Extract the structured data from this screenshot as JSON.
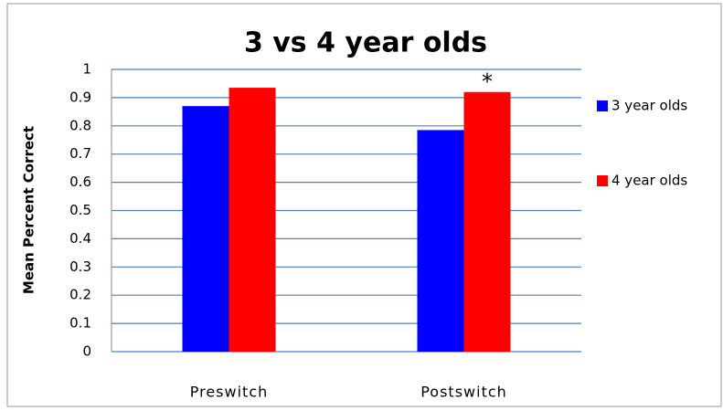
{
  "chart_data": {
    "type": "bar",
    "title": "3 vs 4 year olds",
    "y_label": "Mean Percent Correct",
    "categories": [
      "Preswitch",
      "Postswitch"
    ],
    "series": [
      {
        "name": "3 year olds",
        "color": "#0000ff",
        "values": [
          0.87,
          0.785
        ]
      },
      {
        "name": "4 year olds",
        "color": "#ff0000",
        "values": [
          0.935,
          0.92
        ]
      }
    ],
    "annotation": "*",
    "ylim": [
      0,
      1
    ],
    "yticks": [
      0,
      0.1,
      0.2,
      0.3,
      0.4,
      0.5,
      0.6,
      0.7,
      0.8,
      0.9,
      1
    ],
    "grid": true,
    "legend": "right"
  }
}
